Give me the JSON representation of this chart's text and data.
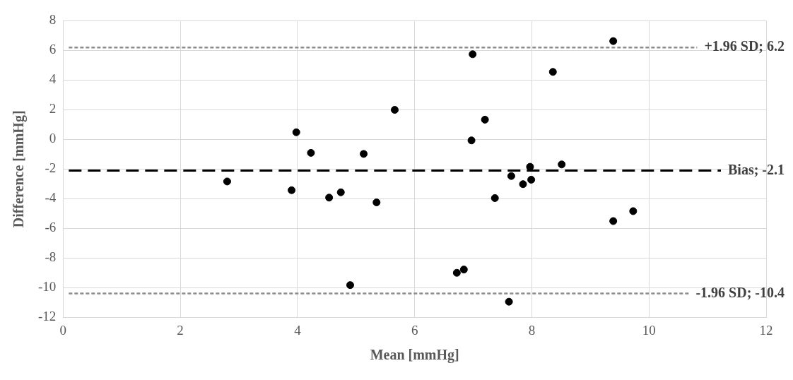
{
  "chart_data": {
    "type": "scatter",
    "xlabel": "Mean [mmHg]",
    "ylabel": "Difference [mmHg]",
    "x": [
      2.8,
      3.98,
      4.23,
      3.9,
      4.54,
      4.74,
      4.9,
      5.13,
      5.35,
      5.66,
      6.72,
      6.84,
      6.99,
      6.97,
      7.2,
      7.37,
      7.61,
      7.65,
      7.85,
      7.97,
      7.99,
      8.36,
      9.39,
      8.51,
      9.39,
      9.73
    ],
    "series": [
      {
        "color": "#000000",
        "values": [
          -2.84,
          0.48,
          -0.91,
          -3.43,
          -3.93,
          -3.57,
          -9.83,
          -0.98,
          -4.25,
          1.99,
          -9.0,
          -8.78,
          5.74,
          -0.07,
          1.33,
          -3.96,
          -10.95,
          -2.47,
          -3.02,
          -1.85,
          -2.72,
          4.55,
          6.63,
          -1.69,
          -5.51,
          -4.84
        ]
      }
    ],
    "marker": "circle",
    "xlim": [
      0,
      12
    ],
    "xticks": [
      0,
      2,
      4,
      6,
      8,
      10,
      12
    ],
    "ylim": [
      -12,
      8
    ],
    "yticks": [
      -12,
      -10,
      -8,
      -6,
      -4,
      -2,
      0,
      2,
      4,
      6,
      8
    ],
    "grid": true,
    "legend": false,
    "ref_lines": [
      {
        "axis": "y",
        "value": 6.2,
        "label": "+1.96 SD; 6.2",
        "color": "#8c8c8c",
        "line_style": "dotted"
      },
      {
        "axis": "y",
        "value": -2.1,
        "label": "Bias; -2.1",
        "color": "#000000",
        "line_style": "dashed"
      },
      {
        "axis": "y",
        "value": -10.4,
        "label": "-1.96 SD; -10.4",
        "color": "#8c8c8c",
        "line_style": "dotted"
      }
    ]
  }
}
